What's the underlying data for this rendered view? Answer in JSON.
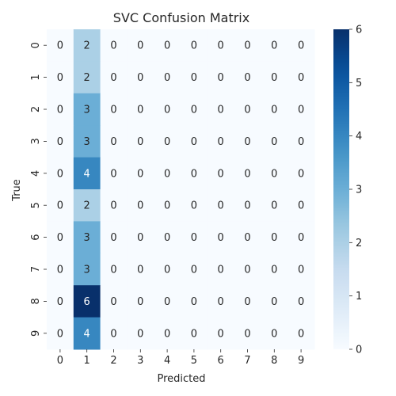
{
  "chart_data": {
    "type": "heatmap",
    "title": "SVC Confusion Matrix",
    "xlabel": "Predicted",
    "ylabel": "True",
    "x_categories": [
      "0",
      "1",
      "2",
      "3",
      "4",
      "5",
      "6",
      "7",
      "8",
      "9"
    ],
    "y_categories": [
      "0",
      "1",
      "2",
      "3",
      "4",
      "5",
      "6",
      "7",
      "8",
      "9"
    ],
    "values": [
      [
        0,
        2,
        0,
        0,
        0,
        0,
        0,
        0,
        0,
        0
      ],
      [
        0,
        2,
        0,
        0,
        0,
        0,
        0,
        0,
        0,
        0
      ],
      [
        0,
        3,
        0,
        0,
        0,
        0,
        0,
        0,
        0,
        0
      ],
      [
        0,
        3,
        0,
        0,
        0,
        0,
        0,
        0,
        0,
        0
      ],
      [
        0,
        4,
        0,
        0,
        0,
        0,
        0,
        0,
        0,
        0
      ],
      [
        0,
        2,
        0,
        0,
        0,
        0,
        0,
        0,
        0,
        0
      ],
      [
        0,
        3,
        0,
        0,
        0,
        0,
        0,
        0,
        0,
        0
      ],
      [
        0,
        3,
        0,
        0,
        0,
        0,
        0,
        0,
        0,
        0
      ],
      [
        0,
        6,
        0,
        0,
        0,
        0,
        0,
        0,
        0,
        0
      ],
      [
        0,
        4,
        0,
        0,
        0,
        0,
        0,
        0,
        0,
        0
      ]
    ],
    "colorbar": {
      "range": [
        0,
        6
      ],
      "ticks": [
        "0",
        "1",
        "2",
        "3",
        "4",
        "5",
        "6"
      ],
      "colormap": "Blues"
    }
  }
}
